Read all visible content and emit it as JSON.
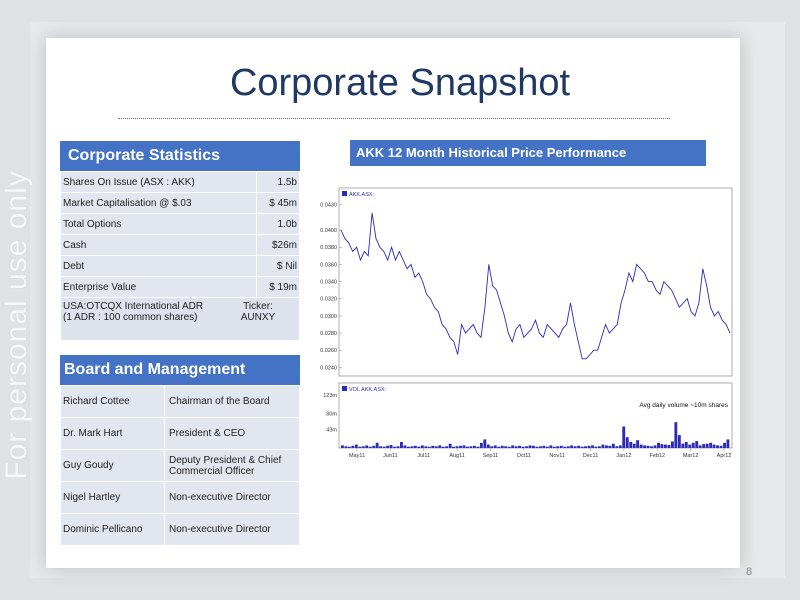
{
  "watermark": "For personal use only",
  "title": "Corporate Snapshot",
  "page_number": "8",
  "corporate_statistics": {
    "heading": "Corporate Statistics",
    "rows": [
      {
        "label": "Shares On Issue (ASX : AKK)",
        "value": "1.5b"
      },
      {
        "label": "Market Capitalisation @ $.03",
        "value": "$ 45m"
      },
      {
        "label": "Total Options",
        "value": "1.0b"
      },
      {
        "label": "Cash",
        "value": "$26m"
      },
      {
        "label": "Debt",
        "value": "$ Nil"
      },
      {
        "label": "Enterprise Value",
        "value": "$ 19m"
      }
    ],
    "adr": {
      "line1": "USA:OTCQX International ADR",
      "line2": "(1 ADR : 100 common shares)",
      "ticker_label": "Ticker:",
      "ticker": "AUNXY"
    }
  },
  "board": {
    "heading": "Board and Management",
    "rows": [
      {
        "name": "Richard Cottee",
        "role": "Chairman of the Board"
      },
      {
        "name": "Dr. Mark Hart",
        "role": "President & CEO"
      },
      {
        "name": "Guy Goudy",
        "role": "Deputy President & Chief Commercial Officer"
      },
      {
        "name": "Nigel Hartley",
        "role": "Non-executive Director"
      },
      {
        "name": "Dominic Pellicano",
        "role": "Non-executive Director"
      }
    ]
  },
  "chart_header": "AKK 12 Month Historical Price Performance",
  "chart_data": [
    {
      "type": "line",
      "legend": "AKK.ASX:",
      "ylim": [
        0.023,
        0.0435
      ],
      "y_ticks": [
        "0.0430",
        "0.0400",
        "0.0380",
        "0.0360",
        "0.0340",
        "0.0320",
        "0.0300",
        "0.0280",
        "0.0260",
        "0.0240"
      ],
      "x_ticks": [
        "May11",
        "Jun11",
        "Jul11",
        "Aug11",
        "Sep11",
        "Oct11",
        "Nov11",
        "Dec11",
        "Jan12",
        "Feb12",
        "Mar12",
        "Apr12"
      ],
      "x": [
        0,
        4,
        8,
        12,
        16,
        20,
        24,
        28,
        32,
        36,
        40,
        44,
        48,
        52,
        56,
        60,
        64,
        68,
        72,
        76,
        80,
        84,
        88,
        92,
        96,
        100,
        104,
        108,
        112,
        116,
        120,
        124,
        128,
        132,
        136,
        140,
        144,
        148,
        152,
        156,
        160,
        164,
        168,
        172,
        176,
        180,
        184,
        188,
        192,
        196,
        200,
        204,
        208,
        212,
        216,
        220,
        224,
        228,
        232,
        236,
        240,
        244,
        248,
        252,
        256,
        260,
        264,
        268,
        272,
        276,
        280,
        284,
        288,
        292,
        296,
        300,
        304,
        308,
        312,
        316,
        320,
        324,
        328,
        332,
        336,
        340,
        344,
        348,
        352,
        356,
        360,
        364,
        368,
        372,
        376,
        380,
        384,
        388,
        392,
        396,
        400
      ],
      "values": [
        0.04,
        0.039,
        0.0385,
        0.0375,
        0.038,
        0.0365,
        0.0375,
        0.037,
        0.042,
        0.039,
        0.038,
        0.0375,
        0.0365,
        0.038,
        0.0365,
        0.0375,
        0.0365,
        0.0355,
        0.036,
        0.0345,
        0.035,
        0.034,
        0.0325,
        0.032,
        0.031,
        0.0305,
        0.029,
        0.0285,
        0.0275,
        0.027,
        0.0255,
        0.029,
        0.028,
        0.0285,
        0.029,
        0.028,
        0.0275,
        0.031,
        0.036,
        0.0335,
        0.033,
        0.0315,
        0.03,
        0.028,
        0.027,
        0.0285,
        0.029,
        0.0275,
        0.028,
        0.0285,
        0.0295,
        0.028,
        0.0275,
        0.029,
        0.0285,
        0.028,
        0.0275,
        0.0285,
        0.029,
        0.0315,
        0.029,
        0.027,
        0.025,
        0.025,
        0.0255,
        0.026,
        0.026,
        0.0275,
        0.029,
        0.028,
        0.0285,
        0.029,
        0.0315,
        0.033,
        0.035,
        0.034,
        0.036,
        0.0355,
        0.035,
        0.034,
        0.034,
        0.033,
        0.0325,
        0.034,
        0.0335,
        0.033,
        0.032,
        0.031,
        0.0315,
        0.032,
        0.0305,
        0.03,
        0.0315,
        0.0355,
        0.0335,
        0.031,
        0.03,
        0.0305,
        0.0295,
        0.029,
        0.028
      ]
    },
    {
      "type": "bar",
      "legend": "VOL AKK.ASX:",
      "unit": "m shares",
      "ylim": [
        0,
        130
      ],
      "y_ticks": [
        "123m",
        "80m",
        "43m"
      ],
      "annotation": "Avg daily volume ~10m shares",
      "values": [
        6,
        4,
        3,
        5,
        8,
        3,
        4,
        6,
        3,
        5,
        12,
        4,
        3,
        5,
        7,
        3,
        4,
        14,
        6,
        3,
        4,
        5,
        3,
        6,
        4,
        3,
        5,
        4,
        6,
        3,
        4,
        10,
        3,
        4,
        5,
        6,
        3,
        4,
        5,
        3,
        12,
        20,
        8,
        4,
        6,
        3,
        5,
        4,
        3,
        6,
        4,
        5,
        3,
        4,
        6,
        5,
        3,
        4,
        5,
        3,
        6,
        3,
        4,
        5,
        3,
        4,
        6,
        4,
        5,
        3,
        4,
        5,
        6,
        3,
        4,
        8,
        6,
        5,
        10,
        4,
        6,
        50,
        25,
        14,
        10,
        18,
        8,
        6,
        5,
        4,
        6,
        12,
        9,
        8,
        7,
        15,
        60,
        30,
        10,
        14,
        8,
        12,
        16,
        6,
        9,
        10,
        12,
        8,
        6,
        5,
        12,
        20
      ]
    }
  ]
}
